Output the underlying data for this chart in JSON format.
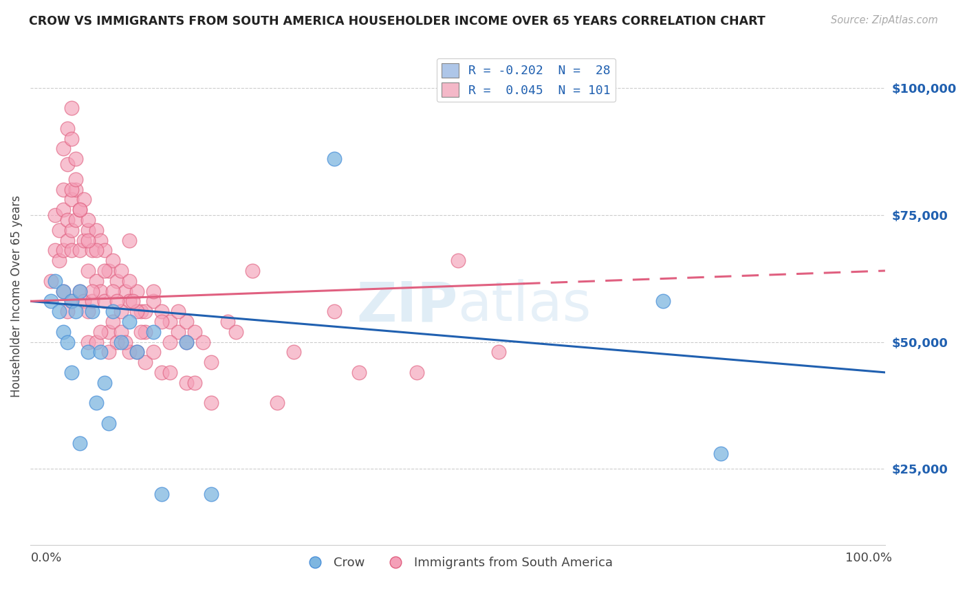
{
  "title": "CROW VS IMMIGRANTS FROM SOUTH AMERICA HOUSEHOLDER INCOME OVER 65 YEARS CORRELATION CHART",
  "source": "Source: ZipAtlas.com",
  "ylabel": "Householder Income Over 65 years",
  "ytick_labels": [
    "$25,000",
    "$50,000",
    "$75,000",
    "$100,000"
  ],
  "ytick_values": [
    25000,
    50000,
    75000,
    100000
  ],
  "ylim": [
    10000,
    108000
  ],
  "xlim": [
    -0.02,
    1.02
  ],
  "legend_entry1_label": "R = -0.202  N =  28",
  "legend_entry2_label": "R =  0.045  N = 101",
  "legend_entry1_color": "#aec6e8",
  "legend_entry2_color": "#f4b8c8",
  "crow_color": "#7eb6e0",
  "crow_edge_color": "#4a90d9",
  "sa_color": "#f4a0b8",
  "sa_edge_color": "#e06080",
  "crow_line_color": "#2060b0",
  "sa_line_color": "#e06080",
  "crow_x": [
    0.005,
    0.01,
    0.015,
    0.02,
    0.02,
    0.025,
    0.03,
    0.03,
    0.035,
    0.04,
    0.04,
    0.05,
    0.055,
    0.06,
    0.065,
    0.07,
    0.075,
    0.08,
    0.09,
    0.1,
    0.11,
    0.13,
    0.14,
    0.17,
    0.2,
    0.35,
    0.75,
    0.82
  ],
  "crow_y": [
    58000,
    62000,
    56000,
    60000,
    52000,
    50000,
    58000,
    44000,
    56000,
    60000,
    30000,
    48000,
    56000,
    38000,
    48000,
    42000,
    34000,
    56000,
    50000,
    54000,
    48000,
    52000,
    20000,
    50000,
    20000,
    86000,
    58000,
    28000
  ],
  "sa_x": [
    0.005,
    0.01,
    0.01,
    0.015,
    0.015,
    0.02,
    0.02,
    0.02,
    0.02,
    0.025,
    0.025,
    0.025,
    0.03,
    0.03,
    0.03,
    0.03,
    0.035,
    0.035,
    0.04,
    0.04,
    0.04,
    0.045,
    0.045,
    0.045,
    0.05,
    0.05,
    0.05,
    0.05,
    0.055,
    0.055,
    0.06,
    0.06,
    0.06,
    0.065,
    0.065,
    0.07,
    0.07,
    0.075,
    0.075,
    0.08,
    0.08,
    0.085,
    0.085,
    0.09,
    0.09,
    0.095,
    0.1,
    0.1,
    0.1,
    0.11,
    0.11,
    0.115,
    0.12,
    0.12,
    0.13,
    0.13,
    0.14,
    0.14,
    0.15,
    0.15,
    0.16,
    0.17,
    0.17,
    0.18,
    0.18,
    0.19,
    0.2,
    0.2,
    0.22,
    0.23,
    0.25,
    0.28,
    0.3,
    0.35,
    0.38,
    0.45,
    0.5,
    0.55,
    0.05,
    0.06,
    0.07,
    0.08,
    0.09,
    0.1,
    0.11,
    0.12,
    0.13,
    0.14,
    0.15,
    0.16,
    0.17,
    0.055,
    0.065,
    0.075,
    0.085,
    0.095,
    0.105,
    0.115,
    0.03,
    0.04,
    0.05
  ],
  "sa_y": [
    62000,
    68000,
    75000,
    72000,
    66000,
    80000,
    76000,
    68000,
    60000,
    74000,
    70000,
    56000,
    78000,
    72000,
    68000,
    58000,
    80000,
    74000,
    76000,
    68000,
    60000,
    78000,
    70000,
    58000,
    72000,
    64000,
    56000,
    50000,
    68000,
    58000,
    72000,
    62000,
    50000,
    70000,
    60000,
    68000,
    58000,
    64000,
    52000,
    66000,
    54000,
    62000,
    50000,
    64000,
    52000,
    60000,
    70000,
    58000,
    48000,
    60000,
    48000,
    56000,
    56000,
    46000,
    58000,
    48000,
    56000,
    44000,
    54000,
    44000,
    52000,
    54000,
    42000,
    52000,
    42000,
    50000,
    46000,
    38000,
    54000,
    52000,
    64000,
    38000,
    48000,
    56000,
    44000,
    44000,
    66000,
    48000,
    74000,
    68000,
    64000,
    60000,
    56000,
    62000,
    56000,
    52000,
    60000,
    54000,
    50000,
    56000,
    50000,
    60000,
    52000,
    48000,
    58000,
    50000,
    58000,
    52000,
    80000,
    76000,
    70000
  ],
  "sa_cluster_x": [
    0.02,
    0.025,
    0.025,
    0.03,
    0.03,
    0.035,
    0.035
  ],
  "sa_cluster_y": [
    88000,
    92000,
    85000,
    96000,
    90000,
    86000,
    82000
  ]
}
